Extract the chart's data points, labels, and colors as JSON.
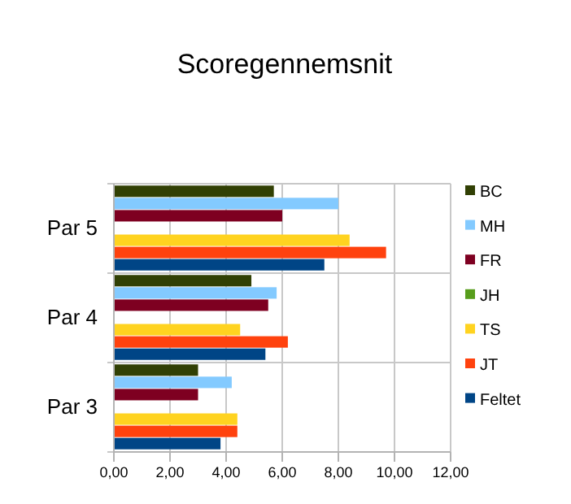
{
  "chart_data": {
    "type": "bar",
    "orientation": "horizontal",
    "title": "Scoregennemsnit",
    "categories": [
      "Par 5",
      "Par 4",
      "Par 3"
    ],
    "series": [
      {
        "name": "BC",
        "color": "#314004",
        "values": [
          5.7,
          4.9,
          3.0
        ]
      },
      {
        "name": "MH",
        "color": "#83caff",
        "values": [
          8.0,
          5.8,
          4.2
        ]
      },
      {
        "name": "FR",
        "color": "#7e0021",
        "values": [
          6.0,
          5.5,
          3.0
        ]
      },
      {
        "name": "JH",
        "color": "#579d1c",
        "values": [
          null,
          null,
          null
        ]
      },
      {
        "name": "TS",
        "color": "#ffd320",
        "values": [
          8.4,
          4.5,
          4.4
        ]
      },
      {
        "name": "JT",
        "color": "#ff420e",
        "values": [
          9.7,
          6.2,
          4.4
        ]
      },
      {
        "name": "Feltet",
        "color": "#004586",
        "values": [
          7.5,
          5.4,
          3.8
        ]
      }
    ],
    "xlim": [
      0,
      12
    ],
    "xticks": [
      {
        "value": 0,
        "label": "0,00"
      },
      {
        "value": 2,
        "label": "2,00"
      },
      {
        "value": 4,
        "label": "4,00"
      },
      {
        "value": 6,
        "label": "6,00"
      },
      {
        "value": 8,
        "label": "8,00"
      },
      {
        "value": 10,
        "label": "10,00"
      },
      {
        "value": 12,
        "label": "12,00"
      }
    ],
    "grid": true,
    "legend": "right"
  }
}
